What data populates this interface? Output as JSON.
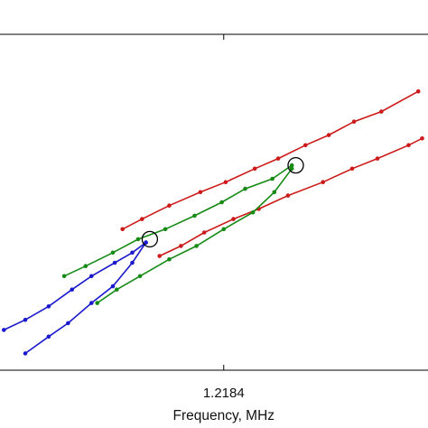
{
  "chart_data": {
    "type": "line",
    "title": "",
    "xlabel": "Frequency, MHz",
    "ylabel": "",
    "xlim": [
      1.21725,
      1.21945
    ],
    "ylim": [
      0,
      1
    ],
    "xticks": [
      1.2184
    ],
    "xtick_labels": [
      "1.2184"
    ],
    "grid": false,
    "colors": {
      "red": "#cc1a1a",
      "green": "#158a15",
      "blue": "#1a1acc",
      "marker": "#000000"
    },
    "series": [
      {
        "color": "red",
        "x": [
          1.21788,
          1.21798,
          1.21812,
          1.21828,
          1.21841,
          1.21856,
          1.21868,
          1.21882,
          1.21894,
          1.21907,
          1.21921,
          1.2194
        ],
        "y": [
          0.42,
          0.45,
          0.49,
          0.53,
          0.56,
          0.6,
          0.63,
          0.67,
          0.7,
          0.74,
          0.77,
          0.83
        ]
      },
      {
        "color": "red",
        "x": [
          1.21807,
          1.21818,
          1.2183,
          1.21845,
          1.21858,
          1.21873,
          1.21891,
          1.21906,
          1.21919,
          1.21935,
          1.21942
        ],
        "y": [
          0.34,
          0.37,
          0.41,
          0.45,
          0.48,
          0.52,
          0.56,
          0.6,
          0.63,
          0.67,
          0.69
        ]
      },
      {
        "color": "green",
        "x": [
          1.21758,
          1.21769,
          1.21783,
          1.21796,
          1.2181,
          1.21825,
          1.21839,
          1.21851,
          1.21865,
          1.21875
        ],
        "y": [
          0.28,
          0.31,
          0.35,
          0.39,
          0.42,
          0.46,
          0.5,
          0.54,
          0.57,
          0.61
        ]
      },
      {
        "color": "green",
        "x": [
          1.21775,
          1.21785,
          1.21797,
          1.21812,
          1.21826,
          1.2184,
          1.21855,
          1.21866,
          1.21875
        ],
        "y": [
          0.2,
          0.24,
          0.28,
          0.33,
          0.37,
          0.42,
          0.47,
          0.53,
          0.6
        ]
      },
      {
        "color": "blue",
        "x": [
          1.21727,
          1.21738,
          1.2175,
          1.21762,
          1.21772,
          1.21784,
          1.21793,
          1.218
        ],
        "y": [
          0.12,
          0.15,
          0.19,
          0.24,
          0.28,
          0.32,
          0.35,
          0.38
        ]
      },
      {
        "color": "blue",
        "x": [
          1.21738,
          1.2175,
          1.2176,
          1.21772,
          1.21783,
          1.21793,
          1.218
        ],
        "y": [
          0.05,
          0.1,
          0.14,
          0.2,
          0.25,
          0.32,
          0.38
        ]
      }
    ],
    "annotations": [
      {
        "x": 1.21802,
        "y": 0.39
      },
      {
        "x": 1.21877,
        "y": 0.61
      }
    ]
  }
}
